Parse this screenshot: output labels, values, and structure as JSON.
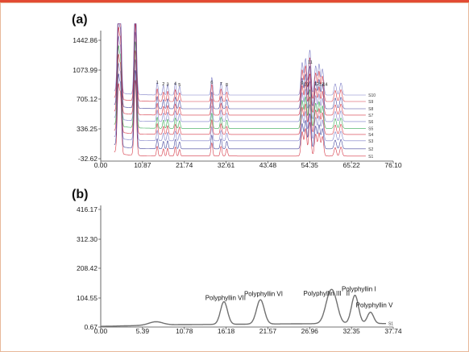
{
  "colors": {
    "frame_top": "#e24a33",
    "frame_border": "#e8b89a",
    "axis": "#444444",
    "traces_a": [
      "#d02030",
      "#303090",
      "#7070c0",
      "#d02030",
      "#20a040",
      "#7070c0",
      "#d02030",
      "#303090",
      "#d02030",
      "#7070c0"
    ],
    "trace_b": "#707070"
  },
  "chart_data": [
    {
      "type": "line",
      "panel_label": "(a)",
      "x_ticks": [
        "0.00",
        "10.87",
        "21.74",
        "32.61",
        "43.48",
        "54.35",
        "65.22",
        "76.10"
      ],
      "y_ticks": [
        "-32.62",
        "336.25",
        "705.12",
        "1073.99",
        "1442.86"
      ],
      "xlim": [
        0,
        76.1
      ],
      "ylim": [
        -32.62,
        1700
      ],
      "series_labels": [
        "S1",
        "S2",
        "S3",
        "S4",
        "S5",
        "S6",
        "S7",
        "S8",
        "S9",
        "S10"
      ],
      "series_offsets": [
        0,
        90,
        190,
        270,
        345,
        430,
        510,
        590,
        680,
        760
      ],
      "baseline_start": 50,
      "series_end_x": 69,
      "peaks": [
        {
          "x": 4.6,
          "h": 1100,
          "w": 0.3
        },
        {
          "x": 5.2,
          "h": 820,
          "w": 0.25
        },
        {
          "x": 9.0,
          "h": 1250,
          "w": 0.3
        },
        {
          "x": 14.7,
          "h": 160,
          "w": 0.2
        },
        {
          "x": 16.3,
          "h": 120,
          "w": 0.2
        },
        {
          "x": 17.4,
          "h": 130,
          "w": 0.2
        },
        {
          "x": 19.4,
          "h": 150,
          "w": 0.2
        },
        {
          "x": 20.5,
          "h": 110,
          "w": 0.2
        },
        {
          "x": 28.9,
          "h": 220,
          "w": 0.22
        },
        {
          "x": 31.3,
          "h": 160,
          "w": 0.22
        },
        {
          "x": 32.8,
          "h": 120,
          "w": 0.22
        },
        {
          "x": 52.4,
          "h": 400,
          "w": 0.3
        },
        {
          "x": 53.3,
          "h": 450,
          "w": 0.3
        },
        {
          "x": 54.4,
          "h": 560,
          "w": 0.3
        },
        {
          "x": 55.9,
          "h": 360,
          "w": 0.3
        },
        {
          "x": 56.8,
          "h": 380,
          "w": 0.3
        },
        {
          "x": 57.7,
          "h": 320,
          "w": 0.3
        },
        {
          "x": 61.0,
          "h": 140,
          "w": 0.3
        },
        {
          "x": 62.5,
          "h": 150,
          "w": 0.3
        }
      ],
      "peak_labels": [
        {
          "text": "1",
          "x": 14.7,
          "y": 900
        },
        {
          "text": "2",
          "x": 16.3,
          "y": 880
        },
        {
          "text": "3",
          "x": 17.4,
          "y": 875
        },
        {
          "text": "4",
          "x": 19.4,
          "y": 885
        },
        {
          "text": "5",
          "x": 20.5,
          "y": 870
        },
        {
          "text": "6",
          "x": 28.9,
          "y": 900
        },
        {
          "text": "7",
          "x": 31.3,
          "y": 880
        },
        {
          "text": "8",
          "x": 32.8,
          "y": 870
        },
        {
          "text": "9",
          "x": 52.4,
          "y": 890
        },
        {
          "text": "10",
          "x": 53.5,
          "y": 875
        },
        {
          "text": "11",
          "x": 54.5,
          "y": 1150
        },
        {
          "text": "12",
          "x": 56.2,
          "y": 880
        },
        {
          "text": "13",
          "x": 57.4,
          "y": 875
        },
        {
          "text": "14",
          "x": 58.4,
          "y": 875
        }
      ]
    },
    {
      "type": "line",
      "panel_label": "(b)",
      "x_ticks": [
        "0.00",
        "5.39",
        "10.78",
        "16.18",
        "21.57",
        "26.96",
        "32.35",
        "37.74"
      ],
      "y_ticks": [
        "0.67",
        "104.55",
        "208.42",
        "312.30",
        "416.17"
      ],
      "xlim": [
        0,
        37.74
      ],
      "ylim": [
        0.67,
        440
      ],
      "series_labels": [
        "S1"
      ],
      "series_end_x": 36.8,
      "baseline": [
        {
          "x": 0,
          "y": 3
        },
        {
          "x": 5.0,
          "y": 6
        },
        {
          "x": 10.0,
          "y": 9
        },
        {
          "x": 20.0,
          "y": 11
        },
        {
          "x": 30.0,
          "y": 13
        },
        {
          "x": 36.8,
          "y": 13
        }
      ],
      "peaks": [
        {
          "x": 7.1,
          "h": 12,
          "w": 0.9
        },
        {
          "x": 15.9,
          "h": 80,
          "w": 0.45
        },
        {
          "x": 20.6,
          "h": 86,
          "w": 0.5
        },
        {
          "x": 29.6,
          "h": 102,
          "w": 0.6
        },
        {
          "x": 30.3,
          "h": 40,
          "w": 0.5
        },
        {
          "x": 32.8,
          "h": 100,
          "w": 0.45
        },
        {
          "x": 34.8,
          "h": 40,
          "w": 0.4
        }
      ],
      "peak_labels": [
        {
          "text": "Polyphyllin VII",
          "x": 16.1,
          "y": 96,
          "anchor": "middle"
        },
        {
          "text": "Polyphyllin VI",
          "x": 21.0,
          "y": 110,
          "anchor": "middle"
        },
        {
          "text": "Polyphyllin III",
          "x": 28.6,
          "y": 112,
          "anchor": "middle"
        },
        {
          "text": "II",
          "x": 31.9,
          "y": 112,
          "anchor": "middle"
        },
        {
          "text": "Polyphyllin I",
          "x": 33.3,
          "y": 127,
          "anchor": "middle"
        },
        {
          "text": "Polyphyllin V",
          "x": 35.3,
          "y": 70,
          "anchor": "middle"
        }
      ]
    }
  ]
}
